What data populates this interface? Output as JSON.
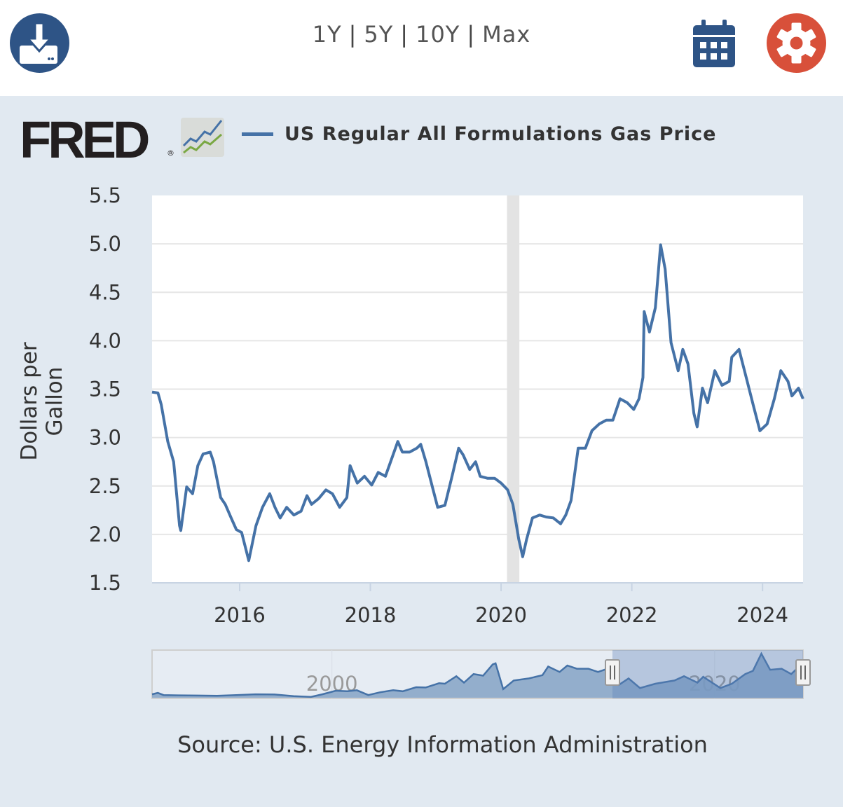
{
  "header": {
    "ranges": [
      "1Y",
      "5Y",
      "10Y",
      "Max"
    ],
    "separator": "|",
    "icons": {
      "download": "download-icon",
      "calendar": "calendar-icon",
      "settings": "gear-icon"
    },
    "colors": {
      "download": "#2e5486",
      "calendar": "#2e5486",
      "settings": "#d8503a"
    }
  },
  "logo": {
    "text": "FRED",
    "reg": "®"
  },
  "source": "Source: U.S. Energy Information Administration",
  "chart_data": {
    "type": "line",
    "title": "US Regular All Formulations Gas Price",
    "xlabel": "",
    "ylabel": "Dollars per Gallon",
    "xlim": [
      2014.66,
      2024.62
    ],
    "ylim": [
      1.5,
      5.5
    ],
    "yticks": [
      "1.5",
      "2.0",
      "2.5",
      "3.0",
      "3.5",
      "4.0",
      "4.5",
      "5.0",
      "5.5"
    ],
    "xticks": [
      "2016",
      "2018",
      "2020",
      "2022",
      "2024"
    ],
    "grid": true,
    "legend": "top-left",
    "line_color": "#4572a7",
    "recession_shading": [
      [
        2020.09,
        2020.28
      ]
    ],
    "series": [
      {
        "name": "US Regular All Formulations Gas Price",
        "x": [
          2014.66,
          2014.75,
          2014.8,
          2014.9,
          2014.99,
          2015.08,
          2015.1,
          2015.19,
          2015.28,
          2015.36,
          2015.44,
          2015.55,
          2015.6,
          2015.71,
          2015.78,
          2015.87,
          2015.95,
          2016.03,
          2016.14,
          2016.25,
          2016.35,
          2016.46,
          2016.54,
          2016.62,
          2016.72,
          2016.83,
          2016.94,
          2017.03,
          2017.1,
          2017.21,
          2017.32,
          2017.42,
          2017.53,
          2017.64,
          2017.69,
          2017.8,
          2017.91,
          2018.02,
          2018.12,
          2018.23,
          2018.31,
          2018.42,
          2018.49,
          2018.6,
          2018.71,
          2018.77,
          2018.85,
          2018.96,
          2019.03,
          2019.14,
          2019.25,
          2019.35,
          2019.42,
          2019.52,
          2019.61,
          2019.68,
          2019.79,
          2019.9,
          2020.0,
          2020.1,
          2020.18,
          2020.27,
          2020.33,
          2020.39,
          2020.48,
          2020.59,
          2020.69,
          2020.8,
          2020.91,
          2020.99,
          2021.07,
          2021.18,
          2021.29,
          2021.39,
          2021.5,
          2021.61,
          2021.71,
          2021.82,
          2021.93,
          2022.03,
          2022.11,
          2022.17,
          2022.19,
          2022.27,
          2022.36,
          2022.44,
          2022.51,
          2022.6,
          2022.71,
          2022.78,
          2022.86,
          2022.95,
          2023.0,
          2023.08,
          2023.16,
          2023.27,
          2023.38,
          2023.49,
          2023.53,
          2023.64,
          2023.75,
          2023.86,
          2023.96,
          2024.07,
          2024.18,
          2024.28,
          2024.39,
          2024.45,
          2024.55,
          2024.62
        ],
        "values": [
          3.47,
          3.46,
          3.34,
          2.96,
          2.75,
          2.09,
          2.04,
          2.49,
          2.42,
          2.71,
          2.83,
          2.85,
          2.75,
          2.38,
          2.31,
          2.17,
          2.05,
          2.02,
          1.73,
          2.09,
          2.28,
          2.42,
          2.28,
          2.17,
          2.28,
          2.2,
          2.24,
          2.4,
          2.31,
          2.37,
          2.46,
          2.42,
          2.28,
          2.38,
          2.71,
          2.53,
          2.6,
          2.51,
          2.64,
          2.6,
          2.75,
          2.96,
          2.85,
          2.85,
          2.89,
          2.93,
          2.75,
          2.46,
          2.28,
          2.3,
          2.6,
          2.89,
          2.82,
          2.67,
          2.75,
          2.6,
          2.58,
          2.58,
          2.53,
          2.46,
          2.31,
          1.95,
          1.77,
          1.95,
          2.17,
          2.2,
          2.18,
          2.17,
          2.11,
          2.2,
          2.35,
          2.89,
          2.89,
          3.07,
          3.14,
          3.18,
          3.18,
          3.4,
          3.36,
          3.29,
          3.4,
          3.62,
          4.3,
          4.09,
          4.34,
          4.99,
          4.74,
          3.98,
          3.69,
          3.91,
          3.76,
          3.25,
          3.11,
          3.51,
          3.36,
          3.69,
          3.54,
          3.58,
          3.83,
          3.91,
          3.62,
          3.33,
          3.07,
          3.14,
          3.4,
          3.69,
          3.58,
          3.43,
          3.51,
          3.4
        ]
      }
    ],
    "navigator": {
      "xlim": [
        1990.6,
        2024.62
      ],
      "ylim": [
        0.9,
        5.2
      ],
      "xticks": [
        "2000",
        "2020"
      ],
      "selected_range": [
        2014.66,
        2024.62
      ],
      "x": [
        1990.6,
        1990.9,
        1991.2,
        1992,
        1993,
        1994,
        1995,
        1996,
        1997,
        1998,
        1998.9,
        1999.5,
        2000.2,
        2000.8,
        2001.3,
        2001.9,
        2002.5,
        2003.2,
        2003.7,
        2004.4,
        2004.9,
        2005.6,
        2005.9,
        2006.5,
        2006.9,
        2007.4,
        2007.9,
        2008.4,
        2008.55,
        2008.95,
        2009.5,
        2010.3,
        2011.0,
        2011.3,
        2011.9,
        2012.3,
        2012.8,
        2013.4,
        2013.9,
        2014.5,
        2015.0,
        2015.5,
        2016.1,
        2016.9,
        2017.9,
        2018.4,
        2019.1,
        2019.4,
        2020.3,
        2020.9,
        2021.6,
        2022.0,
        2022.44,
        2022.9,
        2023.5,
        2024.0,
        2024.3,
        2024.62
      ],
      "values": [
        1.22,
        1.35,
        1.15,
        1.12,
        1.1,
        1.08,
        1.15,
        1.22,
        1.2,
        1.05,
        0.97,
        1.22,
        1.55,
        1.5,
        1.6,
        1.15,
        1.4,
        1.6,
        1.5,
        1.88,
        1.85,
        2.25,
        2.2,
        2.9,
        2.3,
        3.1,
        2.95,
        4.0,
        4.1,
        1.7,
        2.5,
        2.7,
        3.0,
        3.8,
        3.3,
        3.9,
        3.6,
        3.6,
        3.3,
        3.65,
        2.1,
        2.7,
        1.8,
        2.2,
        2.5,
        2.9,
        2.3,
        2.85,
        1.8,
        2.2,
        3.1,
        3.4,
        5.0,
        3.5,
        3.6,
        3.1,
        3.6,
        3.4
      ]
    }
  }
}
